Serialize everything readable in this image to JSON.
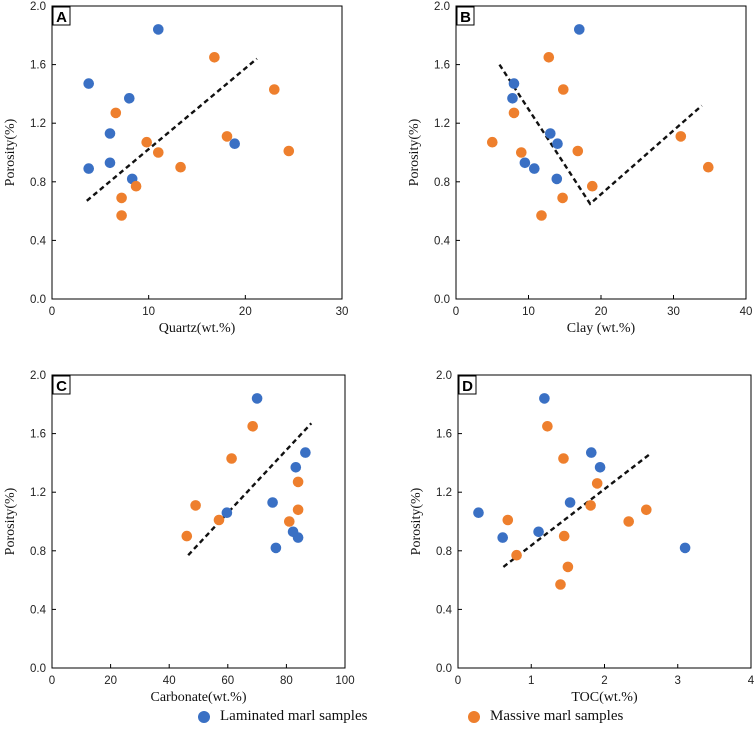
{
  "colors": {
    "laminated": "#3A70C4",
    "massive": "#EE7F2D",
    "trend": "#111111"
  },
  "legend": {
    "laminated_label": "Laminated marl samples",
    "massive_label": "Massive marl samples"
  },
  "chart_data": [
    {
      "type": "scatter",
      "panel": "A",
      "xlabel": "Quartz(wt.%)",
      "ylabel": "Porosity(%)",
      "xlim": [
        0,
        30
      ],
      "ylim": [
        0,
        2.0
      ],
      "xticks": [
        "0",
        "10",
        "20",
        "30"
      ],
      "yticks": [
        "0.0",
        "0.4",
        "0.8",
        "1.2",
        "1.6",
        "2.0"
      ],
      "grid": false,
      "series": [
        {
          "name": "Laminated marl samples",
          "x": [
            11.0,
            3.8,
            8.0,
            6.0,
            3.8,
            6.0,
            8.3,
            18.9
          ],
          "y": [
            1.84,
            1.47,
            1.37,
            1.13,
            0.89,
            0.93,
            0.82,
            1.06
          ]
        },
        {
          "name": "Massive marl samples",
          "x": [
            16.8,
            23.0,
            6.6,
            9.8,
            11.0,
            18.1,
            24.5,
            13.3,
            8.7,
            7.2,
            7.2
          ],
          "y": [
            1.65,
            1.43,
            1.27,
            1.07,
            1.0,
            1.11,
            1.01,
            0.9,
            0.77,
            0.69,
            0.57
          ]
        }
      ],
      "trendline": {
        "x": [
          3.6,
          21.2
        ],
        "y": [
          0.67,
          1.64
        ]
      }
    },
    {
      "type": "scatter",
      "panel": "B",
      "xlabel": "Clay (wt.%)",
      "ylabel": "Porosity(%)",
      "xlim": [
        0,
        40
      ],
      "ylim": [
        0,
        2.0
      ],
      "xticks": [
        "0",
        "10",
        "20",
        "30",
        "40"
      ],
      "yticks": [
        "0.0",
        "0.4",
        "0.8",
        "1.2",
        "1.6",
        "2.0"
      ],
      "grid": false,
      "series": [
        {
          "name": "Laminated marl samples",
          "x": [
            17.0,
            8.0,
            7.8,
            13.0,
            14.0,
            9.5,
            10.8,
            13.9
          ],
          "y": [
            1.84,
            1.47,
            1.37,
            1.13,
            1.06,
            0.93,
            0.89,
            0.82
          ]
        },
        {
          "name": "Massive marl samples",
          "x": [
            12.8,
            14.8,
            8.0,
            5.0,
            9.0,
            16.8,
            31.0,
            34.8,
            18.8,
            14.7,
            11.8
          ],
          "y": [
            1.65,
            1.43,
            1.27,
            1.07,
            1.0,
            1.01,
            1.11,
            0.9,
            0.77,
            0.69,
            0.57
          ]
        }
      ],
      "trendline": {
        "x": [
          6.0,
          18.5,
          33.9
        ],
        "y": [
          1.6,
          0.65,
          1.32
        ]
      }
    },
    {
      "type": "scatter",
      "panel": "C",
      "xlabel": "Carbonate(wt.%)",
      "ylabel": "Porosity(%)",
      "xlim": [
        0,
        100
      ],
      "ylim": [
        0,
        2.0
      ],
      "xticks": [
        "0",
        "20",
        "40",
        "60",
        "80",
        "100"
      ],
      "yticks": [
        "0.0",
        "0.4",
        "0.8",
        "1.2",
        "1.6",
        "2.0"
      ],
      "grid": false,
      "series": [
        {
          "name": "Laminated marl samples",
          "x": [
            70.0,
            86.5,
            83.2,
            75.3,
            59.7,
            82.3,
            84.0,
            76.4
          ],
          "y": [
            1.84,
            1.47,
            1.37,
            1.13,
            1.06,
            0.93,
            0.89,
            0.82
          ]
        },
        {
          "name": "Massive marl samples",
          "x": [
            68.5,
            61.3,
            84.0,
            49.0,
            84.0,
            81.0,
            57.0,
            46.0
          ],
          "y": [
            1.65,
            1.43,
            1.27,
            1.11,
            1.08,
            1.0,
            1.01,
            0.9
          ]
        }
      ],
      "trendline": {
        "x": [
          46.5,
          88.5
        ],
        "y": [
          0.77,
          1.67
        ]
      }
    },
    {
      "type": "scatter",
      "panel": "D",
      "xlabel": "TOC(wt.%)",
      "ylabel": "Porosity(%)",
      "xlim": [
        0,
        4
      ],
      "ylim": [
        0,
        2.0
      ],
      "xticks": [
        "0",
        "1",
        "2",
        "3",
        "4"
      ],
      "yticks": [
        "0.0",
        "0.4",
        "0.8",
        "1.2",
        "1.6",
        "2.0"
      ],
      "grid": false,
      "series": [
        {
          "name": "Laminated marl samples",
          "x": [
            1.18,
            1.82,
            1.94,
            1.53,
            0.28,
            1.1,
            0.61,
            3.1
          ],
          "y": [
            1.84,
            1.47,
            1.37,
            1.13,
            1.06,
            0.93,
            0.89,
            0.82
          ]
        },
        {
          "name": "Massive marl samples",
          "x": [
            1.22,
            1.44,
            1.9,
            1.81,
            2.57,
            2.33,
            0.68,
            1.45,
            0.8,
            1.5,
            1.4
          ],
          "y": [
            1.65,
            1.43,
            1.26,
            1.11,
            1.08,
            1.0,
            1.01,
            0.9,
            0.77,
            0.69,
            0.57
          ]
        }
      ],
      "trendline": {
        "x": [
          0.62,
          2.62
        ],
        "y": [
          0.69,
          1.46
        ]
      }
    }
  ]
}
